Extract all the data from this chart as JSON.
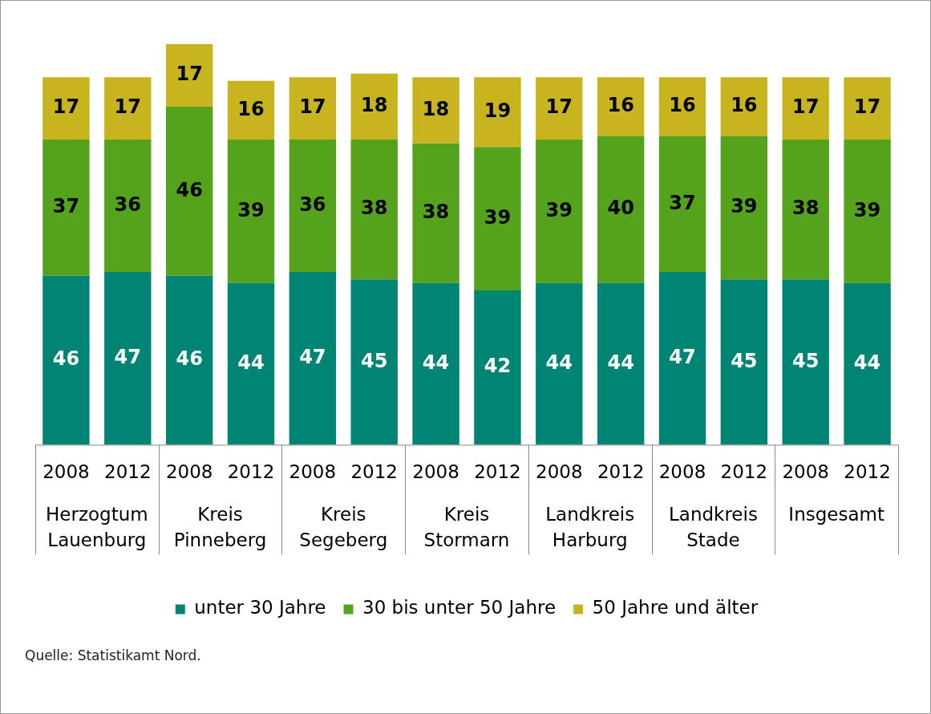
{
  "chart_data": {
    "type": "bar",
    "stacked": true,
    "data_labels": true,
    "legend": "bottom",
    "grid": false,
    "tick_labels": "x",
    "categories": [
      "2008",
      "2012",
      "2008",
      "2012",
      "2008",
      "2012",
      "2008",
      "2012",
      "2008",
      "2012",
      "2008",
      "2012",
      "2008",
      "2012"
    ],
    "series": [
      {
        "name": "unter 30 Jahre",
        "color": "#008575",
        "values": [
          46,
          47,
          46,
          44,
          47,
          45,
          44,
          42,
          44,
          44,
          47,
          45,
          45,
          44
        ]
      },
      {
        "name": "30 bis unter 50 Jahre",
        "color": "#55a31d",
        "values": [
          37,
          36,
          46,
          39,
          36,
          38,
          38,
          39,
          39,
          40,
          37,
          39,
          38,
          39
        ]
      },
      {
        "name": "50 Jahre und älter",
        "color": "#c8b41e",
        "values": [
          17,
          17,
          17,
          16,
          17,
          18,
          18,
          19,
          17,
          16,
          16,
          16,
          17,
          17
        ]
      }
    ],
    "annotations": [
      "Herzogtum Lauenburg",
      "Kreis Pinneberg",
      "Kreis Segeberg",
      "Kreis Stormarn",
      "Landkreis Harburg",
      "Landkreis Stade",
      "Insgesamt",
      "Quelle: Statistikamt Nord."
    ]
  }
}
